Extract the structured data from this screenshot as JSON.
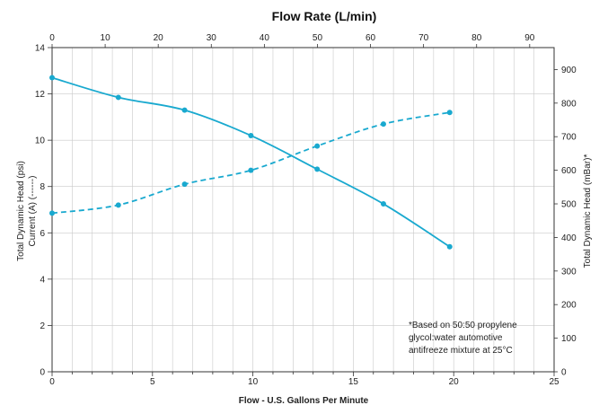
{
  "chart_data": {
    "type": "line",
    "title": "Flow Rate (L/min)",
    "xlabel": "Flow - U.S. Gallons Per Minute",
    "ylabel_left_1": "Total Dynamic Head (psi)",
    "ylabel_left_2": "Current (A) (------)",
    "ylabel_right": "Total Dynamic Head (mBar)*",
    "note": [
      "*Based on 50:50 propylene",
      "glycol:water automotive",
      "antifreeze mixture at 25°C"
    ],
    "xlim": [
      0,
      25
    ],
    "ylim": [
      0,
      14
    ],
    "x_ticks": [
      "0",
      "5",
      "10",
      "15",
      "20",
      "25"
    ],
    "y_ticks": [
      "0",
      "2",
      "4",
      "6",
      "8",
      "10",
      "12",
      "14"
    ],
    "top_axis": {
      "label": "Flow Rate (L/min)",
      "lim": [
        0,
        94.6
      ],
      "ticks": [
        0,
        10,
        20,
        30,
        40,
        50,
        60,
        70,
        80,
        90
      ]
    },
    "right_axis": {
      "label": "Total Dynamic Head (mBar)*",
      "lim": [
        0,
        965.3
      ],
      "ticks": [
        0,
        100,
        200,
        300,
        400,
        500,
        600,
        700,
        800,
        900
      ]
    },
    "series": [
      {
        "style": "solid",
        "color": "#19a9cf",
        "x": [
          0,
          3.3,
          6.6,
          9.9,
          13.2,
          16.5,
          19.8
        ],
        "y": [
          12.7,
          11.85,
          11.3,
          10.2,
          8.75,
          7.25,
          5.4
        ]
      },
      {
        "style": "dashed",
        "color": "#19a9cf",
        "x": [
          0,
          3.3,
          6.6,
          9.9,
          13.2,
          16.5,
          19.8
        ],
        "y": [
          6.85,
          7.2,
          8.1,
          8.7,
          9.75,
          10.7,
          11.2
        ]
      }
    ]
  }
}
